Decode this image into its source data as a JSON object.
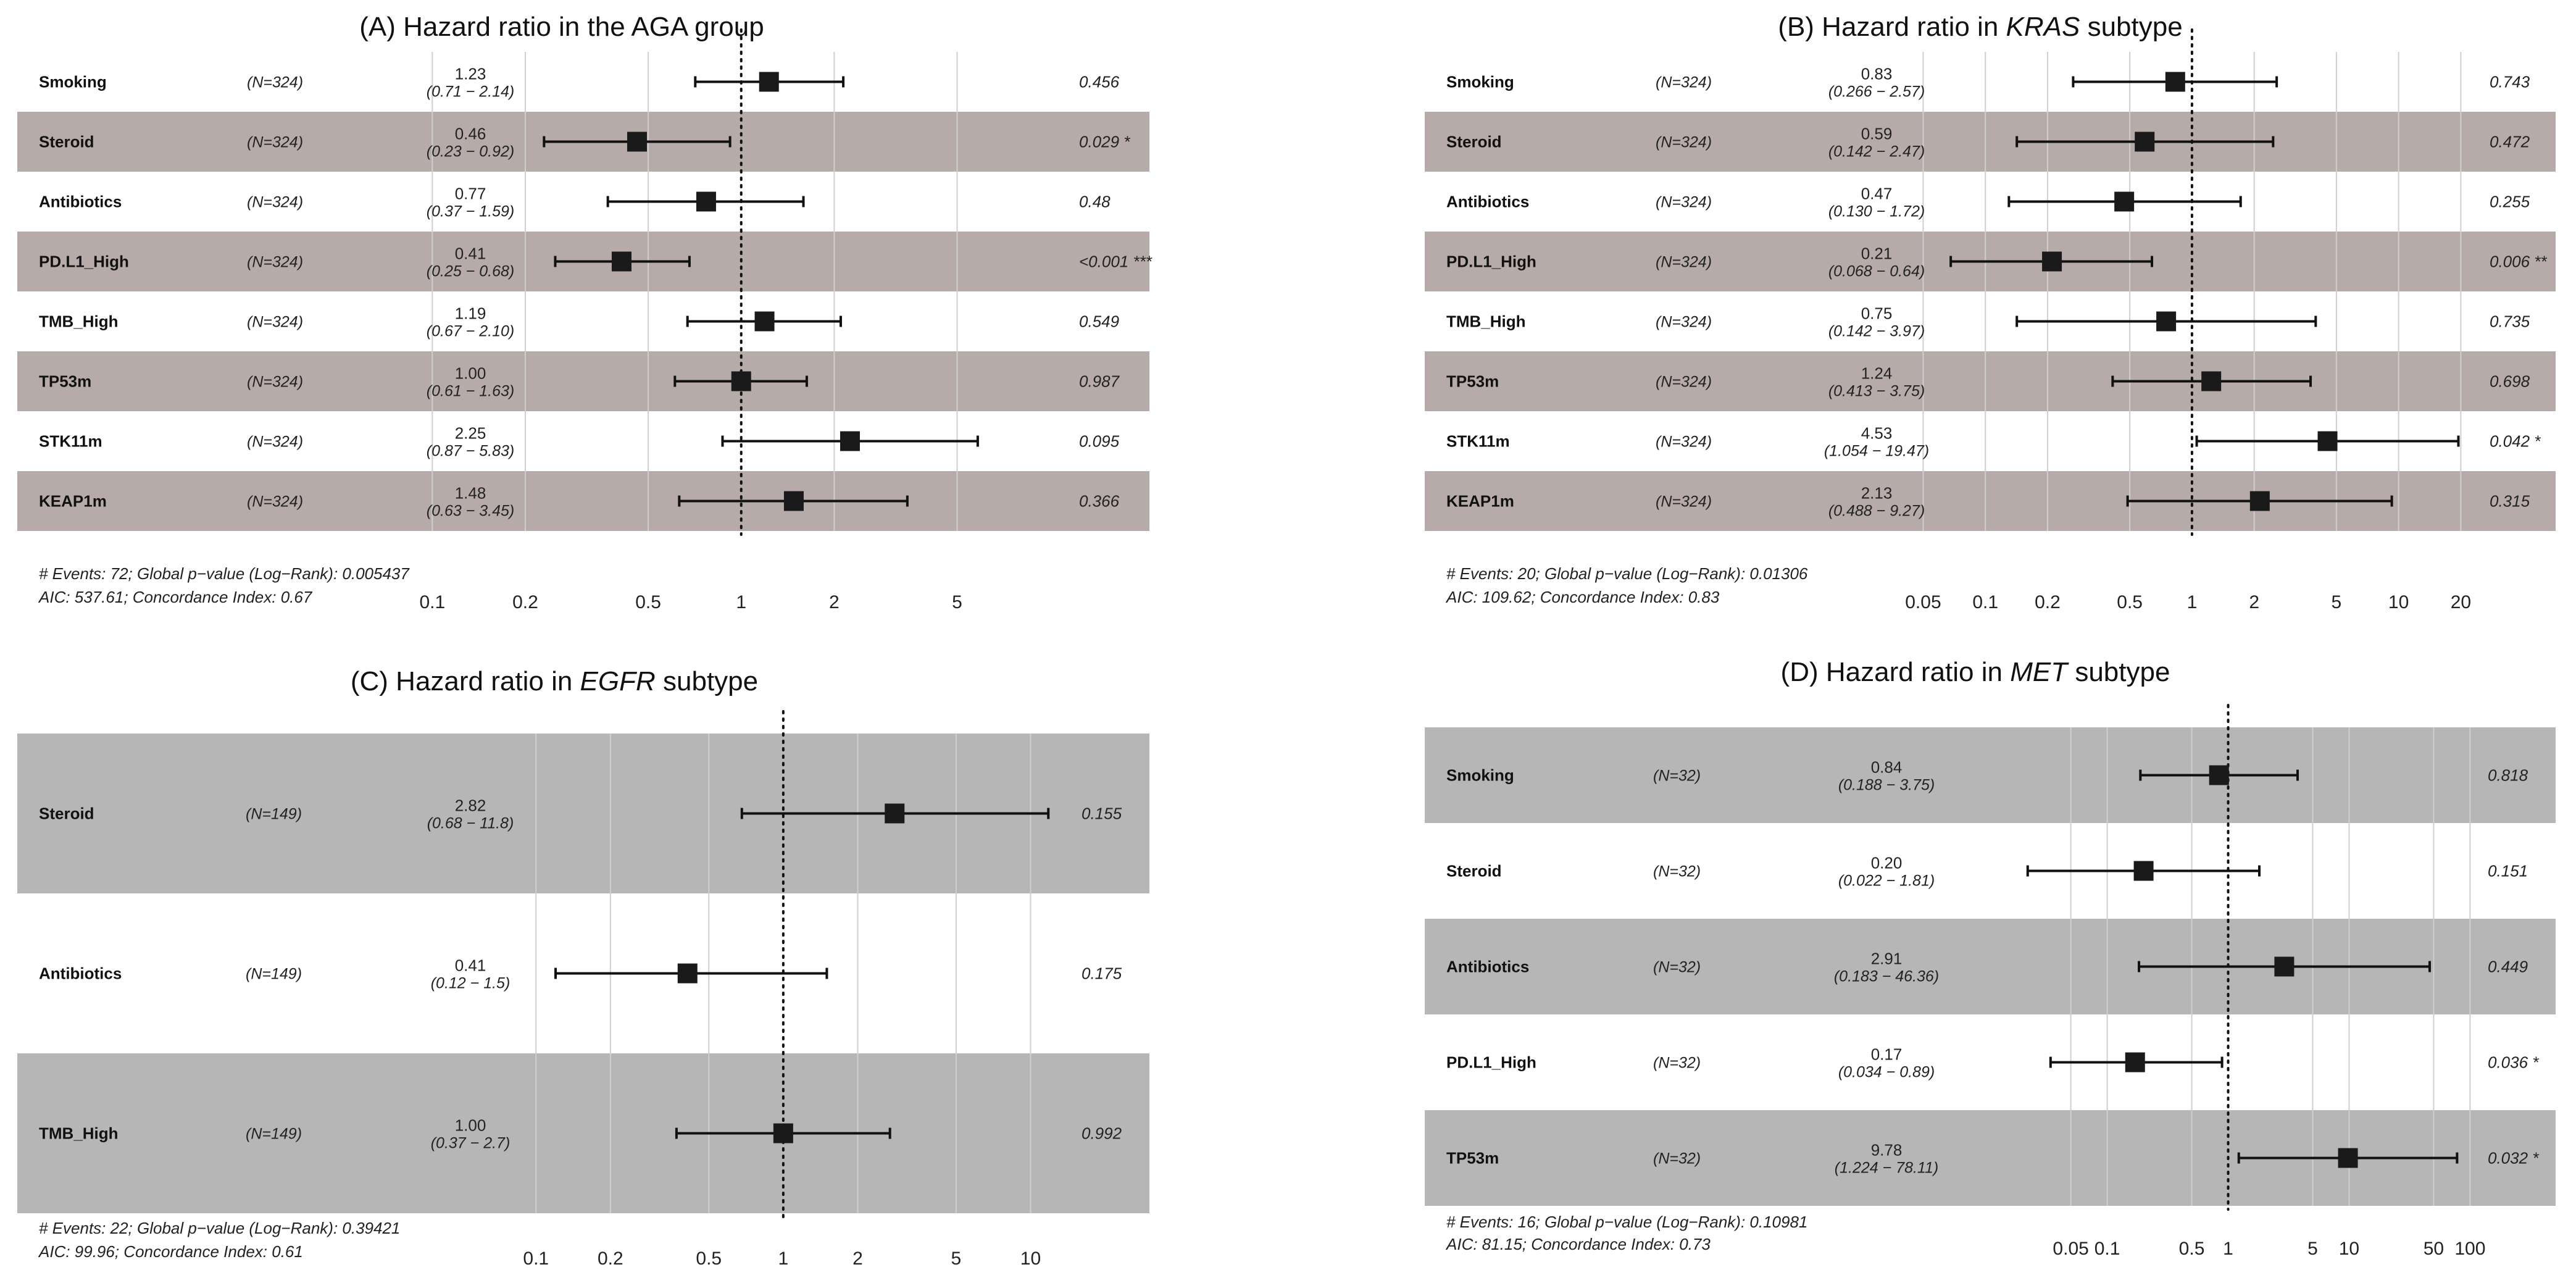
{
  "chart_data": [
    {
      "type": "forest",
      "title_prefix": "(A) Hazard ratio in the AGA group",
      "title_italic": "",
      "title_suffix": "",
      "scale": "log",
      "reference": 1,
      "xticks": [
        0.1,
        0.2,
        0.5,
        1,
        2,
        5
      ],
      "xtick_labels": [
        "0.1",
        "0.2",
        "0.5",
        "1",
        "2",
        "5"
      ],
      "xlim": [
        0.085,
        9.5
      ],
      "shade_color": "#b6aba9",
      "rows": [
        {
          "variable": "Smoking",
          "n": "(N=324)",
          "hr_text": "1.23",
          "ci_text": "(0.71 − 2.14)",
          "hr": 1.23,
          "lo": 0.71,
          "hi": 2.14,
          "p": "0.456"
        },
        {
          "variable": "Steroid",
          "n": "(N=324)",
          "hr_text": "0.46",
          "ci_text": "(0.23 − 0.92)",
          "hr": 0.46,
          "lo": 0.23,
          "hi": 0.92,
          "p": "0.029 *"
        },
        {
          "variable": "Antibiotics",
          "n": "(N=324)",
          "hr_text": "0.77",
          "ci_text": "(0.37 − 1.59)",
          "hr": 0.77,
          "lo": 0.37,
          "hi": 1.59,
          "p": "0.48"
        },
        {
          "variable": "PD.L1_High",
          "n": "(N=324)",
          "hr_text": "0.41",
          "ci_text": "(0.25 − 0.68)",
          "hr": 0.41,
          "lo": 0.25,
          "hi": 0.68,
          "p": "<0.001 ***"
        },
        {
          "variable": "TMB_High",
          "n": "(N=324)",
          "hr_text": "1.19",
          "ci_text": "(0.67 − 2.10)",
          "hr": 1.19,
          "lo": 0.67,
          "hi": 2.1,
          "p": "0.549"
        },
        {
          "variable": "TP53m",
          "n": "(N=324)",
          "hr_text": "1.00",
          "ci_text": "(0.61 − 1.63)",
          "hr": 1.0,
          "lo": 0.61,
          "hi": 1.63,
          "p": "0.987"
        },
        {
          "variable": "STK11m",
          "n": "(N=324)",
          "hr_text": "2.25",
          "ci_text": "(0.87 − 5.83)",
          "hr": 2.25,
          "lo": 0.87,
          "hi": 5.83,
          "p": "0.095"
        },
        {
          "variable": "KEAP1m",
          "n": "(N=324)",
          "hr_text": "1.48",
          "ci_text": "(0.63 − 3.45)",
          "hr": 1.48,
          "lo": 0.63,
          "hi": 3.45,
          "p": "0.366"
        }
      ],
      "footer_1": "# Events: 72; Global p−value (Log−Rank): 0.005437",
      "footer_2": "AIC: 537.61; Concordance Index: 0.67"
    },
    {
      "type": "forest",
      "title_prefix": "(B) Hazard ratio in ",
      "title_italic": "KRAS",
      "title_suffix": " subtype",
      "scale": "log",
      "reference": 1,
      "xticks": [
        0.05,
        0.1,
        0.2,
        0.5,
        1,
        2,
        5,
        10,
        20
      ],
      "xtick_labels": [
        "0.05",
        "0.1",
        "0.2",
        "0.5",
        "1",
        "2",
        "5",
        "10",
        "20"
      ],
      "xlim": [
        0.04,
        27
      ],
      "shade_color": "#b6aba9",
      "rows": [
        {
          "variable": "Smoking",
          "n": "(N=324)",
          "hr_text": "0.83",
          "ci_text": "(0.266 − 2.57)",
          "hr": 0.83,
          "lo": 0.266,
          "hi": 2.57,
          "p": "0.743"
        },
        {
          "variable": "Steroid",
          "n": "(N=324)",
          "hr_text": "0.59",
          "ci_text": "(0.142 − 2.47)",
          "hr": 0.59,
          "lo": 0.142,
          "hi": 2.47,
          "p": "0.472"
        },
        {
          "variable": "Antibiotics",
          "n": "(N=324)",
          "hr_text": "0.47",
          "ci_text": "(0.130 − 1.72)",
          "hr": 0.47,
          "lo": 0.13,
          "hi": 1.72,
          "p": "0.255"
        },
        {
          "variable": "PD.L1_High",
          "n": "(N=324)",
          "hr_text": "0.21",
          "ci_text": "(0.068 − 0.64)",
          "hr": 0.21,
          "lo": 0.068,
          "hi": 0.64,
          "p": "0.006 **"
        },
        {
          "variable": "TMB_High",
          "n": "(N=324)",
          "hr_text": "0.75",
          "ci_text": "(0.142 − 3.97)",
          "hr": 0.75,
          "lo": 0.142,
          "hi": 3.97,
          "p": "0.735"
        },
        {
          "variable": "TP53m",
          "n": "(N=324)",
          "hr_text": "1.24",
          "ci_text": "(0.413 − 3.75)",
          "hr": 1.24,
          "lo": 0.413,
          "hi": 3.75,
          "p": "0.698"
        },
        {
          "variable": "STK11m",
          "n": "(N=324)",
          "hr_text": "4.53",
          "ci_text": "(1.054 − 19.47)",
          "hr": 4.53,
          "lo": 1.054,
          "hi": 19.47,
          "p": "0.042 *"
        },
        {
          "variable": "KEAP1m",
          "n": "(N=324)",
          "hr_text": "2.13",
          "ci_text": "(0.488 − 9.27)",
          "hr": 2.13,
          "lo": 0.488,
          "hi": 9.27,
          "p": "0.315"
        }
      ],
      "footer_1": "# Events: 20; Global p−value (Log−Rank): 0.01306",
      "footer_2": "AIC: 109.62; Concordance Index: 0.83"
    },
    {
      "type": "forest",
      "title_prefix": "(C) Hazard ratio in ",
      "title_italic": "EGFR",
      "title_suffix": " subtype",
      "scale": "log",
      "reference": 1,
      "xticks": [
        0.1,
        0.2,
        0.5,
        1,
        2,
        5,
        10
      ],
      "xtick_labels": [
        "0.1",
        "0.2",
        "0.5",
        "1",
        "2",
        "5",
        "10"
      ],
      "xlim": [
        0.085,
        15
      ],
      "shade_color": "#b7b6b6",
      "rows": [
        {
          "variable": "Steroid",
          "n": "(N=149)",
          "hr_text": "2.82",
          "ci_text": "(0.68 − 11.8)",
          "hr": 2.82,
          "lo": 0.68,
          "hi": 11.8,
          "p": "0.155"
        },
        {
          "variable": "Antibiotics",
          "n": "(N=149)",
          "hr_text": "0.41",
          "ci_text": "(0.12 − 1.5)",
          "hr": 0.41,
          "lo": 0.12,
          "hi": 1.5,
          "p": "0.175"
        },
        {
          "variable": "TMB_High",
          "n": "(N=149)",
          "hr_text": "1.00",
          "ci_text": "(0.37 − 2.7)",
          "hr": 1.0,
          "lo": 0.37,
          "hi": 2.7,
          "p": "0.992"
        }
      ],
      "footer_1": "# Events: 22; Global p−value (Log−Rank): 0.39421",
      "footer_2": "AIC: 99.96; Concordance Index: 0.61"
    },
    {
      "type": "forest",
      "title_prefix": "(D) Hazard ratio in ",
      "title_italic": "MET",
      "title_suffix": " subtype",
      "scale": "log",
      "reference": 1,
      "xticks": [
        0.05,
        0.1,
        0.5,
        1,
        5,
        10,
        50,
        100
      ],
      "xtick_labels": [
        "0.05",
        "0.1",
        "0.5",
        "1",
        "5",
        "10",
        "50",
        "100"
      ],
      "xlim": [
        0.013,
        140
      ],
      "shade_color": "#b7b6b6",
      "rows": [
        {
          "variable": "Smoking",
          "n": "(N=32)",
          "hr_text": "0.84",
          "ci_text": "(0.188 − 3.75)",
          "hr": 0.84,
          "lo": 0.188,
          "hi": 3.75,
          "p": "0.818"
        },
        {
          "variable": "Steroid",
          "n": "(N=32)",
          "hr_text": "0.20",
          "ci_text": "(0.022 − 1.81)",
          "hr": 0.2,
          "lo": 0.022,
          "hi": 1.81,
          "p": "0.151"
        },
        {
          "variable": "Antibiotics",
          "n": "(N=32)",
          "hr_text": "2.91",
          "ci_text": "(0.183 − 46.36)",
          "hr": 2.91,
          "lo": 0.183,
          "hi": 46.36,
          "p": "0.449"
        },
        {
          "variable": "PD.L1_High",
          "n": "(N=32)",
          "hr_text": "0.17",
          "ci_text": "(0.034 − 0.89)",
          "hr": 0.17,
          "lo": 0.034,
          "hi": 0.89,
          "p": "0.036 *"
        },
        {
          "variable": "TP53m",
          "n": "(N=32)",
          "hr_text": "9.78",
          "ci_text": "(1.224 − 78.11)",
          "hr": 9.78,
          "lo": 1.224,
          "hi": 78.11,
          "p": "0.032 *"
        }
      ],
      "footer_1": "# Events: 16; Global p−value (Log−Rank): 0.10981",
      "footer_2": "AIC: 81.15; Concordance Index: 0.73"
    }
  ]
}
